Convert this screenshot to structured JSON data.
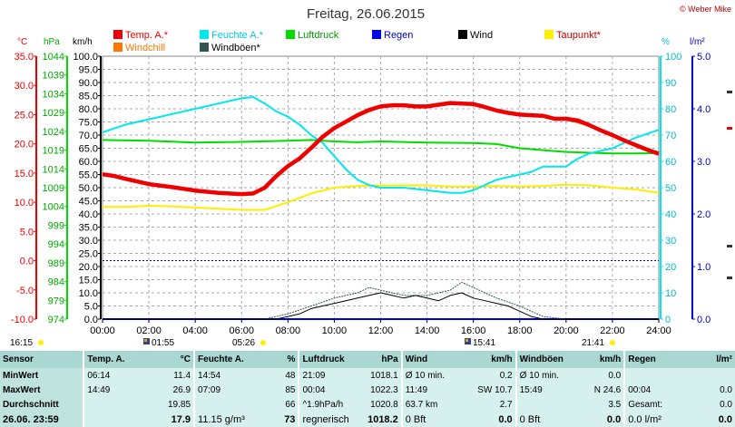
{
  "header": {
    "title": "Freitag, 26.06.2015",
    "copyright": "© Weber Mike"
  },
  "legend": [
    {
      "label": "Temp. A.*",
      "color": "#ee0000"
    },
    {
      "label": "Feuchte A.*",
      "color": "#00e8ee"
    },
    {
      "label": "Luftdruck",
      "color": "#00dd00"
    },
    {
      "label": "Regen",
      "color": "#0000ee"
    },
    {
      "label": "Wind",
      "color": "#000000"
    },
    {
      "label": "Taupunkt*",
      "color": "#ffee00"
    },
    {
      "label": "Windchill",
      "color": "#ff7700"
    },
    {
      "label": "Windböen*",
      "color": "#335555"
    }
  ],
  "axes": {
    "temp_unit": "°C",
    "pressure_unit": "hPa",
    "wind_unit": "km/h",
    "humidity_unit": "%",
    "rain_unit": "l/m²",
    "temp_ticks": [
      "35.0",
      "30.0",
      "25.0",
      "20.0",
      "15.0",
      "10.0",
      "5.0",
      "0.0",
      "-5.0",
      "-10.0"
    ],
    "pressure_ticks": [
      "1044",
      "1039",
      "1034",
      "1029",
      "1024",
      "1019",
      "1014",
      "1009",
      "1004",
      "999",
      "994",
      "989",
      "984",
      "979",
      "974"
    ],
    "wind_ticks": [
      "100.0",
      "95.0",
      "90.0",
      "85.0",
      "80.0",
      "75.0",
      "70.0",
      "65.0",
      "60.0",
      "55.0",
      "50.0",
      "45.0",
      "40.0",
      "35.0",
      "30.0",
      "25.0",
      "20.0",
      "15.0",
      "10.0",
      "5.0",
      "0.0"
    ],
    "humidity_ticks": [
      "100",
      "90",
      "80",
      "70",
      "60",
      "50",
      "40",
      "30",
      "20",
      "10",
      "0"
    ],
    "rain_ticks": [
      "5.0",
      "4.0",
      "3.0",
      "2.0",
      "1.0",
      "0.0"
    ],
    "x_ticks": [
      "00:00",
      "02:00",
      "04:00",
      "06:00",
      "08:00",
      "10:00",
      "12:00",
      "14:00",
      "16:00",
      "18:00",
      "20:00",
      "22:00",
      "24:00"
    ]
  },
  "time_markers": [
    {
      "label": "16:15",
      "color": "#ffee00"
    },
    {
      "label": "01:55",
      "color": "#ddaa00"
    },
    {
      "label": "05:26",
      "color": "#ffee00"
    },
    {
      "label": "15:41",
      "color": "#ddaa00"
    },
    {
      "label": "21:41",
      "color": "#ffee00"
    }
  ],
  "chart_data": {
    "type": "line",
    "title": "Freitag, 26.06.2015",
    "x_range": [
      "00:00",
      "24:00"
    ],
    "grid": true,
    "legend_placement": "top",
    "scales": {
      "temp": [
        -10,
        35
      ],
      "pressure": [
        974,
        1044
      ],
      "wind": [
        0,
        100
      ],
      "humidity": [
        0,
        100
      ],
      "rain": [
        0,
        5
      ]
    },
    "series": [
      {
        "name": "Temp. A.*",
        "axis": "temp",
        "color": "#ee0000",
        "x": [
          0,
          0.5,
          1,
          2,
          3,
          4,
          5,
          6,
          6.5,
          7,
          7.5,
          8,
          8.5,
          9,
          9.5,
          10,
          10.5,
          11,
          11.5,
          12,
          12.5,
          13,
          13.5,
          14,
          14.5,
          15,
          15.5,
          16,
          16.5,
          17,
          17.5,
          18,
          18.5,
          19,
          19.5,
          20,
          20.5,
          21,
          21.5,
          22,
          22.5,
          23,
          23.5,
          24
        ],
        "y": [
          14.8,
          14.5,
          14,
          13.1,
          12.6,
          12,
          11.6,
          11.4,
          11.5,
          12.5,
          14.5,
          16.2,
          17.5,
          19.3,
          21.2,
          22.7,
          23.8,
          24.9,
          25.8,
          26.4,
          26.6,
          26.6,
          26.4,
          26.4,
          26.7,
          27,
          26.9,
          26.8,
          26.3,
          25.7,
          25.3,
          25,
          24.9,
          24.8,
          24.3,
          24.3,
          24,
          23.2,
          22.3,
          21.5,
          20.6,
          19.8,
          19,
          18.3
        ]
      },
      {
        "name": "Windchill",
        "axis": "temp",
        "color": "#ff7700",
        "x": [
          0,
          1,
          2,
          3,
          4,
          5,
          6,
          6.5,
          7,
          8,
          9,
          10,
          11,
          12,
          13,
          14,
          15,
          16,
          17,
          18,
          19,
          20,
          21,
          22,
          23,
          24
        ],
        "y": [
          14.8,
          14,
          13.1,
          12.6,
          12,
          11.6,
          11.3,
          11.4,
          12.4,
          16,
          19.2,
          22.6,
          24.8,
          26.3,
          26.5,
          26.3,
          26.9,
          26.7,
          25.6,
          24.9,
          24.7,
          24.2,
          23.1,
          21.4,
          19.7,
          18.2
        ]
      },
      {
        "name": "Feuchte A.*",
        "axis": "humidity",
        "color": "#00e8ee",
        "x": [
          0,
          1,
          2,
          3,
          4,
          5,
          5.5,
          6,
          6.5,
          7,
          7.5,
          8,
          8.5,
          9,
          9.5,
          10,
          10.5,
          11,
          11.5,
          12,
          13,
          14,
          15,
          15.5,
          16,
          16.5,
          17,
          17.5,
          18,
          18.5,
          19,
          19.5,
          20,
          20.5,
          21,
          22,
          23,
          24
        ],
        "y": [
          71,
          74,
          76,
          78,
          80,
          82,
          83,
          84,
          84.5,
          82,
          79,
          77,
          74,
          70,
          67,
          62,
          57,
          53,
          51,
          50,
          50,
          49,
          48,
          48,
          49,
          51,
          53,
          54,
          55,
          56,
          58,
          58,
          58,
          61,
          63,
          65,
          69,
          72
        ]
      },
      {
        "name": "Luftdruck",
        "axis": "pressure",
        "color": "#00dd00",
        "x": [
          0,
          2,
          4,
          6,
          8,
          9,
          10,
          11,
          12,
          14,
          16,
          17,
          18,
          19,
          20,
          21,
          22,
          23,
          24
        ],
        "y": [
          1021.7,
          1021.5,
          1021.0,
          1021.2,
          1021.5,
          1021.7,
          1021.3,
          1021.1,
          1021.3,
          1021.0,
          1020.9,
          1020.6,
          1019.5,
          1019.0,
          1018.5,
          1018.3,
          1018.1,
          1018.1,
          1018.2
        ]
      },
      {
        "name": "Taupunkt*",
        "axis": "temp",
        "color": "#ffee00",
        "x": [
          0,
          1,
          2,
          3,
          4,
          5,
          6,
          7,
          8,
          9,
          10,
          11,
          12,
          13,
          14,
          15,
          16,
          17,
          18,
          19,
          20,
          21,
          22,
          23,
          24
        ],
        "y": [
          9.2,
          9.2,
          9.4,
          9.3,
          9.1,
          8.9,
          8.7,
          8.7,
          10,
          11.5,
          12.5,
          12.8,
          12.9,
          12.9,
          12.9,
          12.7,
          12.7,
          12.8,
          12.7,
          12.8,
          13,
          12.9,
          12.5,
          12.2,
          11.6
        ]
      },
      {
        "name": "Wind",
        "axis": "wind",
        "color": "#000000",
        "x": [
          0,
          7,
          7.5,
          8,
          8.5,
          9,
          9.5,
          10,
          10.5,
          11,
          11.5,
          12,
          12.5,
          13,
          13.5,
          14,
          14.5,
          15,
          15.5,
          16,
          16.5,
          17,
          17.5,
          18,
          18.5,
          19,
          20,
          24
        ],
        "y": [
          0,
          0,
          0,
          1,
          2,
          4,
          5,
          6,
          7,
          8,
          9,
          10,
          9,
          8,
          9,
          8,
          7,
          9,
          10,
          8,
          7,
          6,
          5,
          3,
          1,
          0,
          0,
          0
        ]
      },
      {
        "name": "Windböen*",
        "axis": "wind",
        "color": "#335555",
        "x": [
          0,
          7,
          8,
          9,
          10,
          11,
          11.5,
          12,
          12.5,
          13,
          14,
          15,
          15.5,
          16,
          16.5,
          17,
          18,
          18.5,
          19,
          20,
          24
        ],
        "y": [
          0,
          0,
          2,
          5,
          8,
          10,
          12,
          11,
          10,
          9,
          9,
          11,
          14,
          12,
          10,
          8,
          5,
          3,
          1,
          0,
          0
        ]
      },
      {
        "name": "Regen",
        "axis": "rain",
        "color": "#0000ee",
        "x": [
          0,
          24
        ],
        "y": [
          0,
          0
        ]
      }
    ]
  },
  "stats": {
    "headers": {
      "sensor": "Sensor",
      "temp": "Temp. A.",
      "temp_unit": "°C",
      "hum": "Feuchte A.",
      "hum_unit": "%",
      "press": "Luftdruck",
      "press_unit": "hPa",
      "wind": "Wind",
      "wind_unit": "km/h",
      "gust": "Windböen",
      "gust_unit": "km/h",
      "rain": "Regen",
      "rain_unit": "l/m²"
    },
    "rows": [
      {
        "label": "MinWert",
        "temp_time": "06:14",
        "temp": "11.4",
        "hum_time": "14:54",
        "hum": "48",
        "press_time": "21:09",
        "press": "1018.1",
        "wind_desc": "Ø 10 min.",
        "wind": "0.2",
        "gust_desc": "Ø 10 min.",
        "gust": "0.0",
        "rain_desc": "",
        "rain": ""
      },
      {
        "label": "MaxWert",
        "temp_time": "14:49",
        "temp": "26.9",
        "hum_time": "07:09",
        "hum": "85",
        "press_time": "00:04",
        "press": "1022.3",
        "wind_desc": "11:49",
        "wind": "SW 10.7",
        "gust_desc": "15:49",
        "gust": "N 24.6",
        "rain_desc": "00:04",
        "rain": "0.0"
      },
      {
        "label": "Durchschnitt",
        "temp_time": "",
        "temp": "19.85",
        "hum_time": "",
        "hum": "66",
        "press_time": "^1.9hPa/h",
        "press": "1020.8",
        "wind_desc": "63.7 km",
        "wind": "2.7",
        "gust_desc": "",
        "gust": "3.5",
        "rain_desc": "Gesamt:",
        "rain": "0.0"
      },
      {
        "label": "26.06. 23:59",
        "temp_time": "",
        "temp": "17.9",
        "hum_time": "11.15 g/m³",
        "hum": "73",
        "press_time": "regnerisch",
        "press": "1018.2",
        "wind_desc": "0 Bft",
        "wind": "0.0",
        "gust_desc": "0 Bft",
        "gust": "0.0",
        "rain_desc": "0.0 l/m²",
        "rain": "0.0"
      }
    ]
  }
}
